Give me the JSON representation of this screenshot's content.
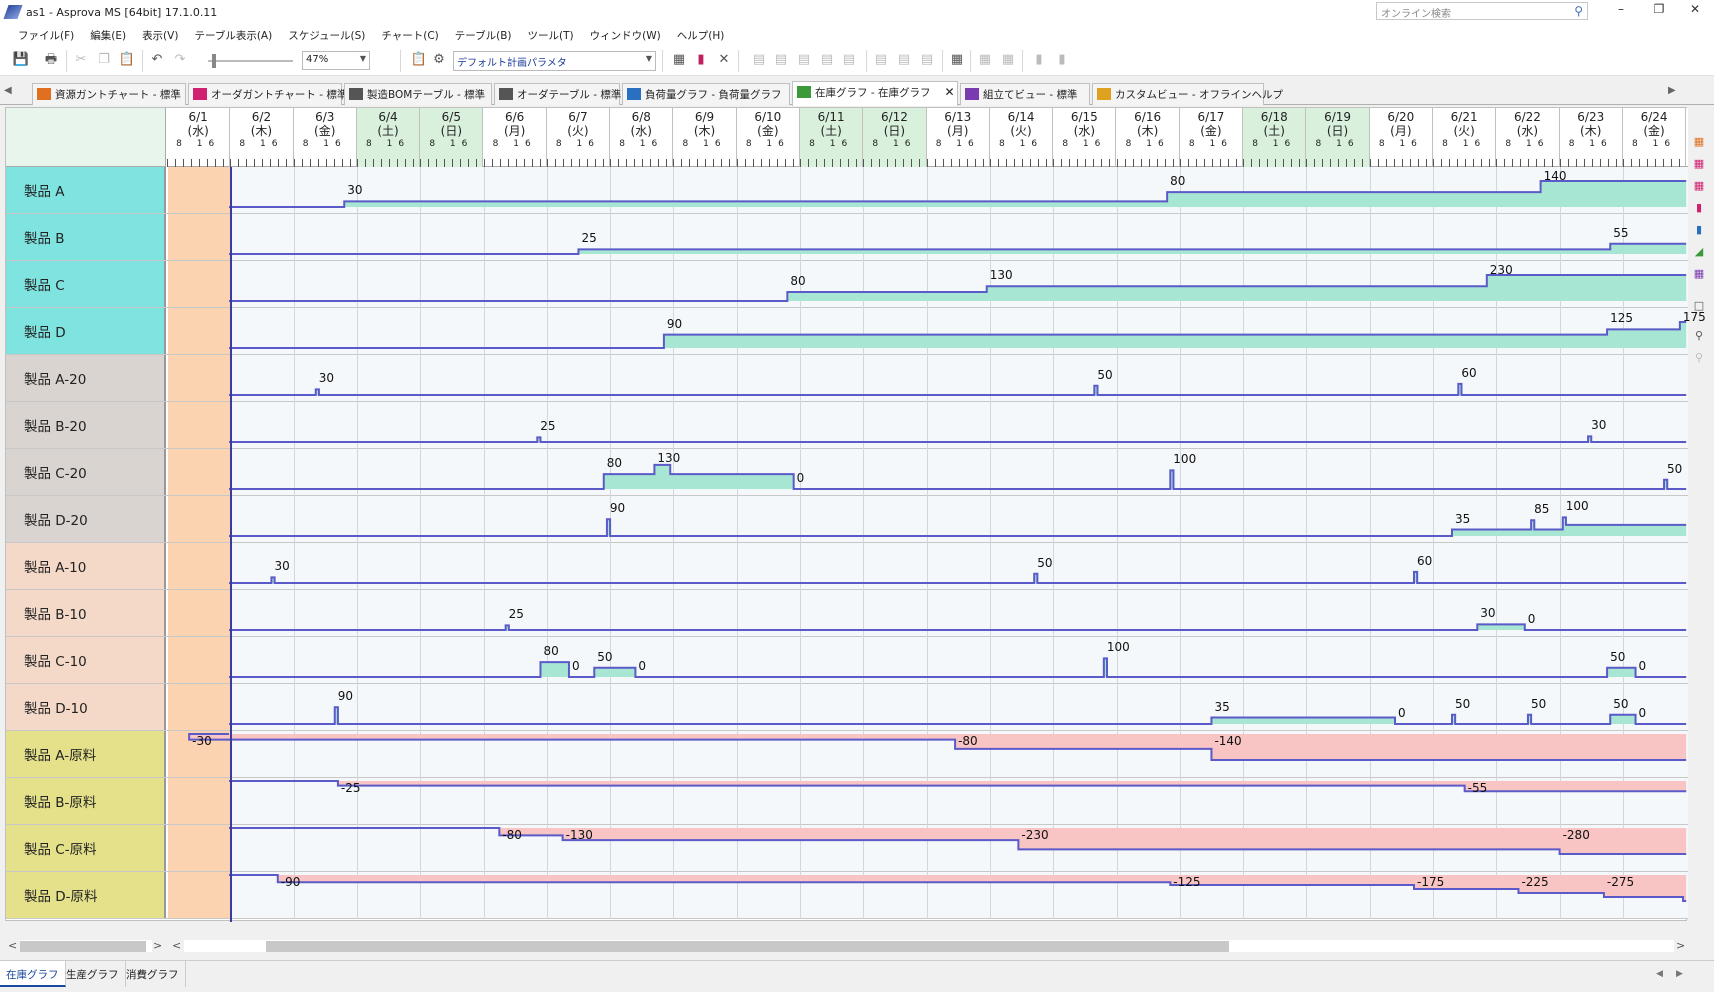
{
  "window": {
    "title": "as1 - Asprova MS [64bit] 17.1.0.11",
    "search_placeholder": "オンライン検索",
    "minimize": "–",
    "maximize": "❐",
    "close": "✕"
  },
  "menu": [
    "ファイル(F)",
    "編集(E)",
    "表示(V)",
    "テーブル表示(A)",
    "スケジュール(S)",
    "チャート(C)",
    "テーブル(B)",
    "ツール(T)",
    "ウィンドウ(W)",
    "ヘルプ(H)"
  ],
  "toolbar": {
    "zoom": "47%",
    "plan_param": "デフォルト計画パラメタ"
  },
  "tabs": [
    {
      "label": "資源ガントチャート - 標準",
      "icon": "gantt-icon",
      "color": "#e07020"
    },
    {
      "label": "オーダガントチャート - 標準",
      "icon": "order-gantt-icon",
      "color": "#d02070"
    },
    {
      "label": "製造BOMテーブル - 標準",
      "icon": "table-icon",
      "color": "#555"
    },
    {
      "label": "オーダテーブル - 標準",
      "icon": "table-icon",
      "color": "#555"
    },
    {
      "label": "負荷量グラフ - 負荷量グラフ",
      "icon": "load-graph-icon",
      "color": "#2a70c0"
    },
    {
      "label": "在庫グラフ - 在庫グラフ",
      "icon": "inventory-graph-icon",
      "color": "#3a9a3a",
      "active": true
    },
    {
      "label": "組立てビュー - 標準",
      "icon": "assembly-icon",
      "color": "#7a3ab0"
    },
    {
      "label": "カスタムビュー - オフラインヘルプ",
      "icon": "custom-view-icon",
      "color": "#e0a020"
    }
  ],
  "dates": [
    {
      "d": "6/1",
      "w": "(水)"
    },
    {
      "d": "6/2",
      "w": "(木)"
    },
    {
      "d": "6/3",
      "w": "(金)"
    },
    {
      "d": "6/4",
      "w": "(土)",
      "wk": true
    },
    {
      "d": "6/5",
      "w": "(日)",
      "wk": true
    },
    {
      "d": "6/6",
      "w": "(月)"
    },
    {
      "d": "6/7",
      "w": "(火)"
    },
    {
      "d": "6/8",
      "w": "(水)"
    },
    {
      "d": "6/9",
      "w": "(木)"
    },
    {
      "d": "6/10",
      "w": "(金)"
    },
    {
      "d": "6/11",
      "w": "(土)",
      "wk": true
    },
    {
      "d": "6/12",
      "w": "(日)",
      "wk": true
    },
    {
      "d": "6/13",
      "w": "(月)"
    },
    {
      "d": "6/14",
      "w": "(火)"
    },
    {
      "d": "6/15",
      "w": "(水)"
    },
    {
      "d": "6/16",
      "w": "(木)"
    },
    {
      "d": "6/17",
      "w": "(金)"
    },
    {
      "d": "6/18",
      "w": "(土)",
      "wk": true
    },
    {
      "d": "6/19",
      "w": "(日)",
      "wk": true
    },
    {
      "d": "6/20",
      "w": "(月)"
    },
    {
      "d": "6/21",
      "w": "(火)"
    },
    {
      "d": "6/22",
      "w": "(水)"
    },
    {
      "d": "6/23",
      "w": "(木)"
    },
    {
      "d": "6/24",
      "w": "(金)"
    }
  ],
  "hour_labels": "8 16",
  "rows": [
    {
      "label": "製品 A",
      "c": "t",
      "neg": false,
      "steps": [
        [
          0,
          0
        ],
        [
          2.8,
          30
        ],
        [
          15.8,
          80
        ],
        [
          21.7,
          140
        ]
      ],
      "labels": [
        [
          2.8,
          "30"
        ],
        [
          15.8,
          "80"
        ],
        [
          21.7,
          "140"
        ]
      ]
    },
    {
      "label": "製品 B",
      "c": "t",
      "neg": false,
      "steps": [
        [
          0,
          0
        ],
        [
          6.5,
          25
        ],
        [
          22.8,
          55
        ]
      ],
      "labels": [
        [
          6.5,
          "25"
        ],
        [
          22.8,
          "55"
        ]
      ]
    },
    {
      "label": "製品 C",
      "c": "t",
      "neg": false,
      "steps": [
        [
          0,
          0
        ],
        [
          9.8,
          80
        ],
        [
          12.95,
          130
        ],
        [
          20.85,
          230
        ]
      ],
      "labels": [
        [
          9.8,
          "80"
        ],
        [
          12.95,
          "130"
        ],
        [
          20.85,
          "230"
        ]
      ]
    },
    {
      "label": "製品 D",
      "c": "t",
      "neg": false,
      "steps": [
        [
          0,
          0
        ],
        [
          7.85,
          90
        ],
        [
          22.75,
          125
        ],
        [
          23.9,
          175
        ]
      ],
      "labels": [
        [
          7.85,
          "90"
        ],
        [
          22.75,
          "125"
        ],
        [
          23.9,
          "175"
        ]
      ]
    },
    {
      "label": "製品 A-20",
      "c": "g",
      "neg": false,
      "steps": [
        [
          0,
          0
        ],
        [
          2.35,
          30
        ],
        [
          2.4,
          0
        ],
        [
          14.65,
          50
        ],
        [
          14.7,
          0
        ],
        [
          20.4,
          60
        ],
        [
          20.45,
          0
        ]
      ],
      "labels": [
        [
          2.35,
          "30"
        ],
        [
          14.65,
          "50"
        ],
        [
          20.4,
          "60"
        ]
      ]
    },
    {
      "label": "製品 B-20",
      "c": "g",
      "neg": false,
      "steps": [
        [
          0,
          0
        ],
        [
          5.85,
          25
        ],
        [
          5.9,
          0
        ],
        [
          22.45,
          30
        ],
        [
          22.5,
          0
        ]
      ],
      "labels": [
        [
          5.85,
          "25"
        ],
        [
          22.45,
          "30"
        ]
      ]
    },
    {
      "label": "製品 C-20",
      "c": "g",
      "neg": false,
      "steps": [
        [
          0,
          0
        ],
        [
          6.9,
          80
        ],
        [
          7.7,
          130
        ],
        [
          7.95,
          80
        ],
        [
          9.9,
          0
        ],
        [
          15.85,
          100
        ],
        [
          15.9,
          0
        ],
        [
          23.65,
          50
        ],
        [
          23.7,
          0
        ]
      ],
      "labels": [
        [
          6.9,
          "80"
        ],
        [
          7.7,
          "130"
        ],
        [
          9.9,
          "0"
        ],
        [
          15.85,
          "100"
        ],
        [
          23.65,
          "50"
        ]
      ]
    },
    {
      "label": "製品 D-20",
      "c": "g",
      "neg": false,
      "steps": [
        [
          0,
          0
        ],
        [
          6.95,
          90
        ],
        [
          7.0,
          0
        ],
        [
          20.3,
          35
        ],
        [
          21.55,
          85
        ],
        [
          21.6,
          35
        ],
        [
          22.05,
          100
        ],
        [
          22.1,
          60
        ]
      ],
      "labels": [
        [
          6.95,
          "90"
        ],
        [
          20.3,
          "35"
        ],
        [
          21.55,
          "85"
        ],
        [
          22.05,
          "100"
        ]
      ]
    },
    {
      "label": "製品 A-10",
      "c": "p",
      "neg": false,
      "steps": [
        [
          0,
          0
        ],
        [
          1.65,
          30
        ],
        [
          1.7,
          0
        ],
        [
          13.7,
          50
        ],
        [
          13.75,
          0
        ],
        [
          19.7,
          60
        ],
        [
          19.75,
          0
        ]
      ],
      "labels": [
        [
          1.65,
          "30"
        ],
        [
          13.7,
          "50"
        ],
        [
          19.7,
          "60"
        ]
      ]
    },
    {
      "label": "製品 B-10",
      "c": "p",
      "neg": false,
      "steps": [
        [
          0,
          0
        ],
        [
          5.35,
          25
        ],
        [
          5.4,
          0
        ],
        [
          20.7,
          30
        ],
        [
          21.45,
          0
        ]
      ],
      "labels": [
        [
          5.35,
          "25"
        ],
        [
          20.7,
          "30"
        ],
        [
          21.45,
          "0"
        ]
      ]
    },
    {
      "label": "製品 C-10",
      "c": "p",
      "neg": false,
      "steps": [
        [
          0,
          0
        ],
        [
          5.9,
          80
        ],
        [
          6.35,
          0
        ],
        [
          6.75,
          50
        ],
        [
          7.4,
          0
        ],
        [
          14.8,
          100
        ],
        [
          14.85,
          0
        ],
        [
          22.75,
          50
        ],
        [
          23.2,
          0
        ]
      ],
      "labels": [
        [
          5.9,
          "80"
        ],
        [
          6.35,
          "0"
        ],
        [
          6.75,
          "50"
        ],
        [
          7.4,
          "0"
        ],
        [
          14.8,
          "100"
        ],
        [
          22.75,
          "50"
        ],
        [
          23.2,
          "0"
        ]
      ]
    },
    {
      "label": "製品 D-10",
      "c": "p",
      "neg": false,
      "steps": [
        [
          0,
          0
        ],
        [
          2.65,
          90
        ],
        [
          2.7,
          0
        ],
        [
          16.5,
          35
        ],
        [
          19.4,
          0
        ],
        [
          20.3,
          50
        ],
        [
          20.35,
          0
        ],
        [
          21.5,
          50
        ],
        [
          21.55,
          0
        ],
        [
          22.8,
          50
        ],
        [
          23.2,
          0
        ]
      ],
      "labels": [
        [
          2.65,
          "90"
        ],
        [
          16.5,
          "35"
        ],
        [
          19.4,
          "0"
        ],
        [
          20.3,
          "50"
        ],
        [
          21.5,
          "50"
        ],
        [
          22.8,
          "50"
        ],
        [
          23.2,
          "0"
        ]
      ]
    },
    {
      "label": "製品 A-原料",
      "c": "y",
      "neg": true,
      "steps": [
        [
          0,
          0
        ],
        [
          0.35,
          -30
        ],
        [
          12.45,
          -80
        ],
        [
          16.5,
          -140
        ]
      ],
      "labels": [
        [
          0.35,
          "-30"
        ],
        [
          12.45,
          "-80"
        ],
        [
          16.5,
          "-140"
        ]
      ]
    },
    {
      "label": "製品 B-原料",
      "c": "y",
      "neg": true,
      "steps": [
        [
          0,
          0
        ],
        [
          2.7,
          -25
        ],
        [
          20.5,
          -55
        ]
      ],
      "labels": [
        [
          2.7,
          "-25"
        ],
        [
          20.5,
          "-55"
        ]
      ]
    },
    {
      "label": "製品 C-原料",
      "c": "y",
      "neg": true,
      "steps": [
        [
          0,
          0
        ],
        [
          5.25,
          -80
        ],
        [
          6.25,
          -130
        ],
        [
          13.45,
          -230
        ],
        [
          22.0,
          -280
        ]
      ],
      "labels": [
        [
          5.25,
          "-80"
        ],
        [
          6.25,
          "-130"
        ],
        [
          13.45,
          "-230"
        ],
        [
          22.0,
          "-280"
        ]
      ]
    },
    {
      "label": "製品 D-原料",
      "c": "y",
      "neg": true,
      "steps": [
        [
          0,
          0
        ],
        [
          1.75,
          -90
        ],
        [
          15.85,
          -125
        ],
        [
          19.7,
          -175
        ],
        [
          21.35,
          -225
        ],
        [
          22.7,
          -275
        ],
        [
          23.95,
          -325
        ]
      ],
      "labels": [
        [
          1.75,
          "-90"
        ],
        [
          15.85,
          "-125"
        ],
        [
          19.7,
          "-175"
        ],
        [
          21.35,
          "-225"
        ],
        [
          22.7,
          "-275"
        ]
      ]
    }
  ],
  "bottom_tabs": [
    "在庫グラフ",
    "生産グラフ",
    "消費グラフ"
  ]
}
